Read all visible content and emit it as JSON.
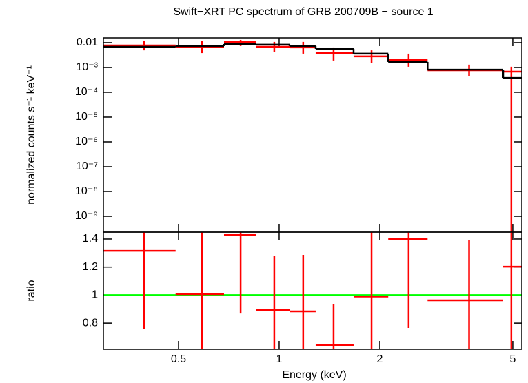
{
  "chart_data": [
    {
      "type": "spectrum",
      "title": "Swift−XRT PC spectrum of GRB 200709B − source 1",
      "ylabel": "normalized counts s⁻¹ keV⁻¹",
      "xscale": "log",
      "yscale": "log",
      "xlim": [
        0.298,
        5.32
      ],
      "ylim": [
        2.3e-10,
        0.0156
      ],
      "yticks": [
        0.01,
        {
          "value": 0.001,
          "label": "10⁻³"
        },
        {
          "value": 0.0001,
          "label": "10⁻⁴"
        },
        {
          "value": 1e-05,
          "label": "10⁻⁵"
        },
        {
          "value": 1e-06,
          "label": "10⁻⁶"
        },
        {
          "value": 1e-07,
          "label": "10⁻⁷"
        },
        {
          "value": 1e-08,
          "label": "10⁻⁸"
        },
        {
          "value": 1e-09,
          "label": "10⁻⁹"
        }
      ],
      "data": {
        "color": "#ff0000",
        "x": [
          0.394,
          0.588,
          0.767,
          0.967,
          1.18,
          1.455,
          1.89,
          2.44,
          3.7,
          4.95
        ],
        "x_lo": [
          0.298,
          0.49,
          0.684,
          0.855,
          1.074,
          1.286,
          1.67,
          2.12,
          2.78,
          4.68
        ],
        "x_hi": [
          0.49,
          0.684,
          0.855,
          1.074,
          1.286,
          1.67,
          2.12,
          2.78,
          4.68,
          5.32
        ],
        "y": [
          0.0077,
          0.0068,
          0.0107,
          0.0068,
          0.0064,
          0.0038,
          0.0028,
          0.002,
          0.00077,
          0.00068
        ],
        "y_lo": [
          0.0049,
          0.0038,
          0.0073,
          0.0041,
          0.0036,
          0.0019,
          0.0015,
          0.00107,
          0.00046,
          2.3e-10
        ],
        "y_hi": [
          0.0121,
          0.0114,
          0.0129,
          0.0107,
          0.0107,
          0.0064,
          0.0049,
          0.0036,
          0.0013,
          0.00107
        ]
      },
      "model": {
        "color": "#000000",
        "bins": [
          0.298,
          0.49,
          0.684,
          0.855,
          1.074,
          1.286,
          1.67,
          2.12,
          2.78,
          4.68,
          5.32
        ],
        "values": [
          0.0068,
          0.0073,
          0.0088,
          0.0083,
          0.0073,
          0.0056,
          0.0036,
          0.00167,
          0.00082,
          0.00038
        ]
      }
    },
    {
      "type": "ratio",
      "xlabel": "Energy (keV)",
      "ylabel": "ratio",
      "xscale": "log",
      "xlim": [
        0.298,
        5.32
      ],
      "ylim": [
        0.614,
        1.449
      ],
      "xticks": [
        0.5,
        1,
        2,
        5
      ],
      "yticks": [
        1.4,
        1.2,
        1,
        0.8
      ],
      "reference": 1,
      "reference_color": "#00ff00",
      "data": {
        "color": "#ff0000",
        "x": [
          0.394,
          0.588,
          0.767,
          0.967,
          1.18,
          1.455,
          1.89,
          2.44,
          3.7,
          4.95
        ],
        "x_lo": [
          0.298,
          0.49,
          0.684,
          0.855,
          1.074,
          1.286,
          1.67,
          2.12,
          2.78,
          4.68
        ],
        "x_hi": [
          0.49,
          0.684,
          0.855,
          1.074,
          1.286,
          1.67,
          2.12,
          2.78,
          4.68,
          5.32
        ],
        "y": [
          1.316,
          1.007,
          1.429,
          0.894,
          0.884,
          0.643,
          0.99,
          1.4,
          0.963,
          1.203
        ],
        "y_lo": [
          0.761,
          0.614,
          0.869,
          0.614,
          0.614,
          0.614,
          0.614,
          0.766,
          0.614,
          0.614
        ],
        "y_hi": [
          1.449,
          1.449,
          1.449,
          1.277,
          1.287,
          0.938,
          1.449,
          1.449,
          1.395,
          1.449
        ]
      }
    }
  ]
}
